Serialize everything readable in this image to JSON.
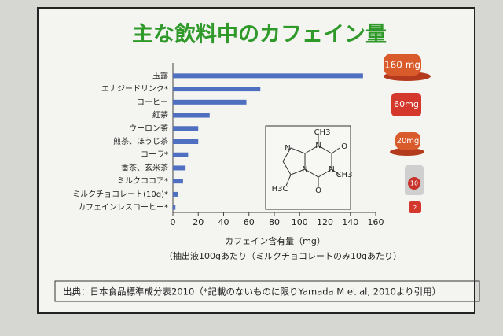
{
  "chart_data": {
    "type": "bar",
    "orientation": "horizontal",
    "title": "主な飲料中のカフェイン量",
    "categories": [
      "玉露",
      "エナジードリンク*",
      "コーヒー",
      "紅茶",
      "ウーロン茶",
      "煎茶、ほうじ茶",
      "コーラ*",
      "番茶、玄米茶",
      "ミルクココア*",
      "ミルクチョコレート(10g)*",
      "カフェインレスコーヒー*"
    ],
    "values": [
      150,
      69,
      58,
      29,
      20,
      20,
      12,
      10,
      8,
      4,
      2
    ],
    "color": "#4f6fc0",
    "xlim": [
      0,
      160
    ],
    "xticks": [
      0,
      20,
      40,
      60,
      80,
      100,
      120,
      140,
      160
    ],
    "xlabel": "カフェイン含有量（mg）",
    "note": "（抽出液100gあたり（ミルクチョコレートのみ10gあたり）",
    "grid": false
  },
  "molecule": {
    "labels": [
      "CH3",
      "N",
      "O",
      "N",
      "N",
      "N",
      "CH3",
      "H3C",
      "O"
    ]
  },
  "cups": [
    "160 mg",
    "60mg",
    "20mg",
    "10",
    "2"
  ],
  "source": "出典：日本食品標準成分表2010（*記載のないものに限りYamada M et al, 2010より引用）"
}
